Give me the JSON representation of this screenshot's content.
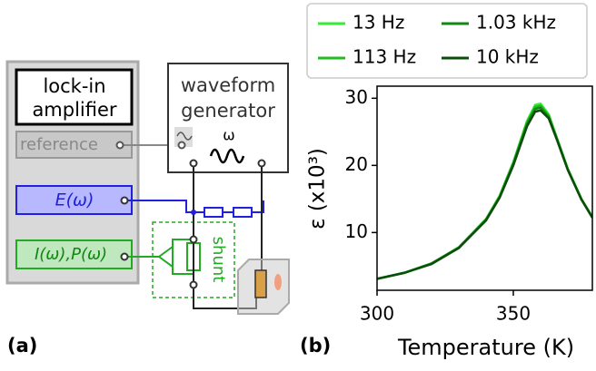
{
  "diagram": {
    "lockin": [
      "lock-in",
      "amplifier"
    ],
    "reference": "reference",
    "generator": [
      "waveform",
      "generator"
    ],
    "omega": "ω",
    "e_input": "E(ω)",
    "i_input": "I(ω),P(ω)",
    "shunt": "shunt",
    "panel_a": "(a)"
  },
  "chart_data": {
    "type": "line",
    "panel": "(b)",
    "xlabel": "Temperature (K)",
    "ylabel": "ε (x10³)",
    "x": [
      300,
      310,
      320,
      330,
      340,
      345,
      350,
      355,
      358,
      360,
      363,
      366,
      370,
      375,
      379
    ],
    "series": [
      {
        "name": "13 Hz",
        "color": "#33ee33",
        "values": [
          3.1,
          4.0,
          5.4,
          7.8,
          12.0,
          15.5,
          20.5,
          26.6,
          29.0,
          29.2,
          27.6,
          24.1,
          19.5,
          15.0,
          12.3
        ]
      },
      {
        "name": "113 Hz",
        "color": "#22bb22",
        "values": [
          3.1,
          4.0,
          5.4,
          7.8,
          12.0,
          15.4,
          20.4,
          26.4,
          28.7,
          28.9,
          27.4,
          24.0,
          19.4,
          15.0,
          12.3
        ]
      },
      {
        "name": "1.03 kHz",
        "color": "#118811",
        "values": [
          3.1,
          4.0,
          5.4,
          7.7,
          11.9,
          15.3,
          20.2,
          26.1,
          28.4,
          28.6,
          27.2,
          23.9,
          19.4,
          14.9,
          12.3
        ]
      },
      {
        "name": "10 kHz",
        "color": "#0b4d0b",
        "values": [
          3.1,
          4.0,
          5.3,
          7.7,
          11.8,
          15.2,
          20.0,
          25.8,
          28.0,
          28.2,
          27.0,
          23.8,
          19.3,
          14.9,
          12.2
        ]
      }
    ],
    "xlim": [
      300,
      379
    ],
    "ylim": [
      1.4,
      31.8
    ],
    "xticks": [
      300,
      350
    ],
    "yticks": [
      10,
      20,
      30
    ],
    "grid": false,
    "legend": "top"
  }
}
